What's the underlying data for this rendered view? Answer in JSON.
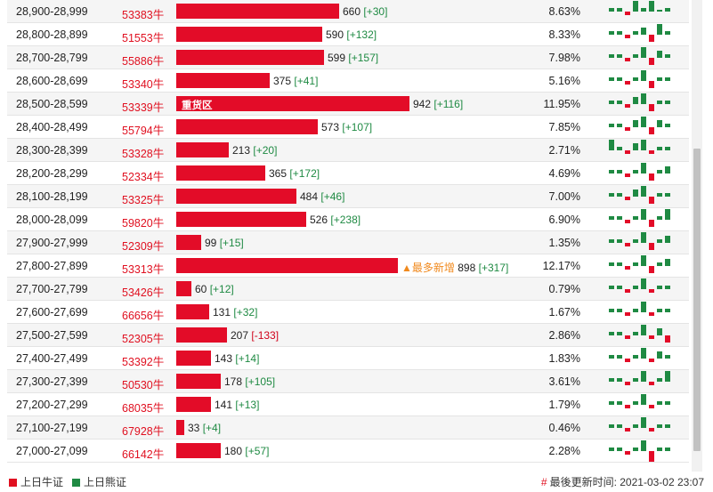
{
  "colors": {
    "bull_bar": "#e30c28",
    "bull_text": "#e01020",
    "bear": "#1f8a43",
    "highlight": "#f0891d"
  },
  "rows": [
    {
      "range": "28,900-28,999",
      "code": "53383牛",
      "count": "660",
      "change": "[+30]",
      "pct": "8.63%",
      "label": "",
      "marker": "",
      "share": 0.084,
      "spark": [
        1,
        1,
        -1,
        3,
        1,
        3,
        0,
        1
      ]
    },
    {
      "range": "28,800-28,899",
      "code": "51553牛",
      "count": "590",
      "change": "[+132]",
      "pct": "8.33%",
      "label": "",
      "marker": "",
      "share": 0.075,
      "spark": [
        1,
        1,
        -1,
        1,
        2,
        -2,
        3,
        1
      ]
    },
    {
      "range": "28,700-28,799",
      "code": "55886牛",
      "count": "599",
      "change": "[+157]",
      "pct": "7.98%",
      "label": "",
      "marker": "",
      "share": 0.076,
      "spark": [
        1,
        1,
        -1,
        1,
        3,
        -2,
        2,
        1
      ]
    },
    {
      "range": "28,600-28,699",
      "code": "53340牛",
      "count": "375",
      "change": "[+41]",
      "pct": "5.16%",
      "label": "",
      "marker": "",
      "share": 0.048,
      "spark": [
        1,
        1,
        -1,
        1,
        3,
        -2,
        1,
        1
      ]
    },
    {
      "range": "28,500-28,599",
      "code": "53339牛",
      "count": "942",
      "change": "[+116]",
      "pct": "11.95%",
      "label": "重货区",
      "marker": "",
      "share": 0.12,
      "spark": [
        1,
        1,
        -1,
        2,
        3,
        -2,
        1,
        1
      ]
    },
    {
      "range": "28,400-28,499",
      "code": "55794牛",
      "count": "573",
      "change": "[+107]",
      "pct": "7.85%",
      "label": "",
      "marker": "",
      "share": 0.073,
      "spark": [
        1,
        1,
        -1,
        2,
        3,
        -2,
        2,
        1
      ]
    },
    {
      "range": "28,300-28,399",
      "code": "53328牛",
      "count": "213",
      "change": "[+20]",
      "pct": "2.71%",
      "label": "",
      "marker": "",
      "share": 0.027,
      "spark": [
        3,
        1,
        -1,
        2,
        3,
        -1,
        1,
        1
      ]
    },
    {
      "range": "28,200-28,299",
      "code": "52334牛",
      "count": "365",
      "change": "[+172]",
      "pct": "4.69%",
      "label": "",
      "marker": "",
      "share": 0.046,
      "spark": [
        1,
        1,
        -1,
        1,
        3,
        -2,
        1,
        2
      ]
    },
    {
      "range": "28,100-28,199",
      "code": "53325牛",
      "count": "484",
      "change": "[+46]",
      "pct": "7.00%",
      "label": "",
      "marker": "",
      "share": 0.062,
      "spark": [
        1,
        1,
        -1,
        2,
        3,
        -2,
        1,
        1
      ]
    },
    {
      "range": "28,000-28,099",
      "code": "59820牛",
      "count": "526",
      "change": "[+238]",
      "pct": "6.90%",
      "label": "",
      "marker": "",
      "share": 0.067,
      "spark": [
        1,
        1,
        -1,
        1,
        3,
        -2,
        1,
        3
      ]
    },
    {
      "range": "27,900-27,999",
      "code": "52309牛",
      "count": "99",
      "change": "[+15]",
      "pct": "1.35%",
      "label": "",
      "marker": "",
      "share": 0.013,
      "spark": [
        1,
        1,
        -1,
        1,
        3,
        -2,
        1,
        2
      ]
    },
    {
      "range": "27,800-27,899",
      "code": "53313牛",
      "count": "898",
      "change": "[+317]",
      "pct": "12.17%",
      "label": "",
      "marker": "▲最多新增",
      "share": 0.114,
      "spark": [
        1,
        1,
        -1,
        1,
        3,
        -2,
        1,
        2
      ]
    },
    {
      "range": "27,700-27,799",
      "code": "53426牛",
      "count": "60",
      "change": "[+12]",
      "pct": "0.79%",
      "label": "",
      "marker": "",
      "share": 0.0076,
      "spark": [
        1,
        1,
        -1,
        1,
        3,
        -1,
        1,
        1
      ]
    },
    {
      "range": "27,600-27,699",
      "code": "66656牛",
      "count": "131",
      "change": "[+32]",
      "pct": "1.67%",
      "label": "",
      "marker": "",
      "share": 0.017,
      "spark": [
        1,
        1,
        -1,
        1,
        3,
        -1,
        1,
        1
      ]
    },
    {
      "range": "27,500-27,599",
      "code": "52305牛",
      "count": "207",
      "change": "[-133]",
      "pct": "2.86%",
      "label": "",
      "marker": "",
      "share": 0.026,
      "spark": [
        1,
        1,
        -1,
        1,
        3,
        -1,
        2,
        -2
      ]
    },
    {
      "range": "27,400-27,499",
      "code": "53392牛",
      "count": "143",
      "change": "[+14]",
      "pct": "1.83%",
      "label": "",
      "marker": "",
      "share": 0.018,
      "spark": [
        1,
        1,
        -1,
        1,
        3,
        -1,
        2,
        1
      ]
    },
    {
      "range": "27,300-27,399",
      "code": "50530牛",
      "count": "178",
      "change": "[+105]",
      "pct": "3.61%",
      "label": "",
      "marker": "",
      "share": 0.023,
      "spark": [
        1,
        1,
        -1,
        1,
        3,
        -1,
        1,
        3
      ]
    },
    {
      "range": "27,200-27,299",
      "code": "68035牛",
      "count": "141",
      "change": "[+13]",
      "pct": "1.79%",
      "label": "",
      "marker": "",
      "share": 0.018,
      "spark": [
        1,
        1,
        -1,
        1,
        3,
        -1,
        1,
        1
      ]
    },
    {
      "range": "27,100-27,199",
      "code": "67928牛",
      "count": "33",
      "change": "[+4]",
      "pct": "0.46%",
      "label": "",
      "marker": "",
      "share": 0.0042,
      "spark": [
        1,
        1,
        -1,
        1,
        3,
        -1,
        1,
        1
      ]
    },
    {
      "range": "27,000-27,099",
      "code": "66142牛",
      "count": "180",
      "change": "[+57]",
      "pct": "2.28%",
      "label": "",
      "marker": "",
      "share": 0.023,
      "spark": [
        1,
        1,
        -1,
        1,
        3,
        -3,
        1,
        1
      ]
    }
  ],
  "legend": {
    "bull": "上日牛证",
    "bear": "上日熊证"
  },
  "footer": {
    "updated_label": "最後更新时间:",
    "updated_time": "2021-03-02 23:07"
  }
}
